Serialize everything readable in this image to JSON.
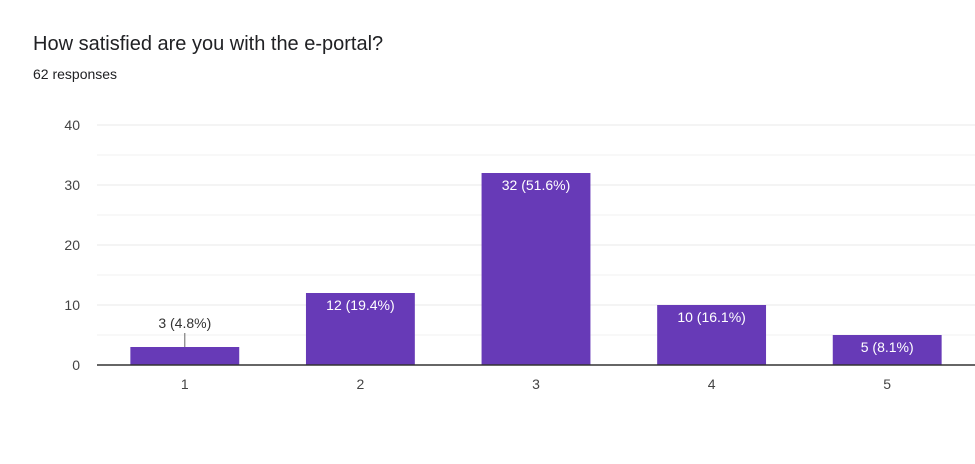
{
  "header": {
    "title": "How satisfied are you with the e-portal?",
    "subtitle": "62 responses"
  },
  "colors": {
    "bar": "#673ab7",
    "grid": "#e8e8e8",
    "axis": "#333333"
  },
  "chart_data": {
    "type": "bar",
    "title": "How satisfied are you with the e-portal?",
    "subtitle": "62 responses",
    "categories": [
      "1",
      "2",
      "3",
      "4",
      "5"
    ],
    "values": [
      3,
      12,
      32,
      10,
      5
    ],
    "data_labels": [
      "3 (4.8%)",
      "12 (19.4%)",
      "32 (51.6%)",
      "10 (16.1%)",
      "5 (8.1%)"
    ],
    "y_ticks": [
      0,
      10,
      20,
      30,
      40
    ],
    "ylim": [
      0,
      40
    ],
    "xlabel": "",
    "ylabel": "",
    "grid": true,
    "legend": "none"
  }
}
